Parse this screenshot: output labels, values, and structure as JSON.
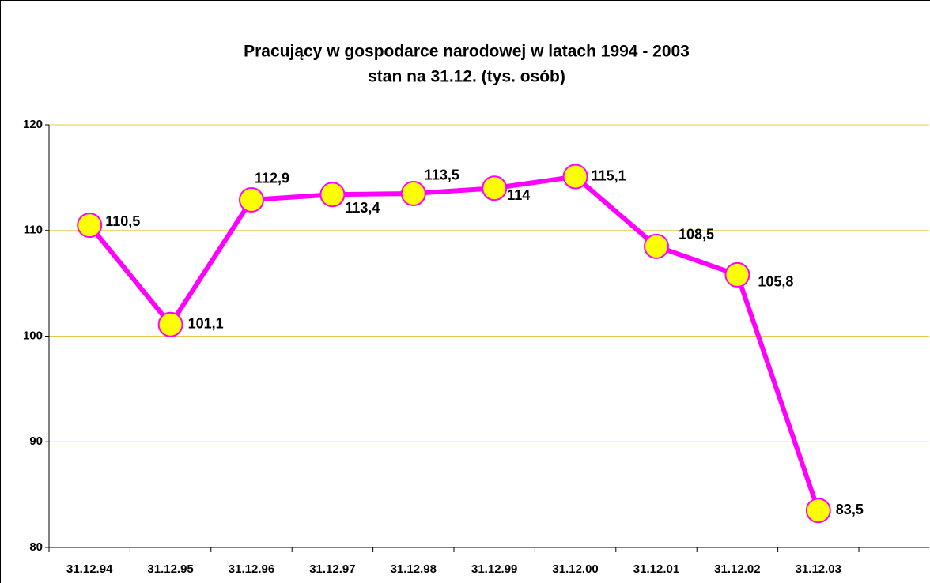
{
  "chart_data": {
    "type": "line",
    "title": "Pracujący w gospodarce narodowej w latach 1994 - 2003",
    "subtitle": "stan na 31.12. (tys. osób)",
    "categories": [
      "31.12.94",
      "31.12.95",
      "31.12.96",
      "31.12.97",
      "31.12.98",
      "31.12.99",
      "31.12.00",
      "31.12.01",
      "31.12.02",
      "31.12.03"
    ],
    "series": [
      {
        "color": "#ff00ff",
        "marker_color": "#ffff00",
        "values": [
          110.5,
          101.1,
          112.9,
          113.4,
          113.5,
          114,
          115.1,
          108.5,
          105.8,
          83.5
        ],
        "value_labels": [
          "110,5",
          "101,1",
          "112,9",
          "113,4",
          "113,5",
          "114",
          "115,1",
          "108,5",
          "105,8",
          "83,5"
        ]
      }
    ],
    "ylim": [
      80,
      120
    ],
    "yticks": [
      80,
      90,
      100,
      110,
      120
    ],
    "grid": true,
    "grid_color": "#e6c84a"
  }
}
